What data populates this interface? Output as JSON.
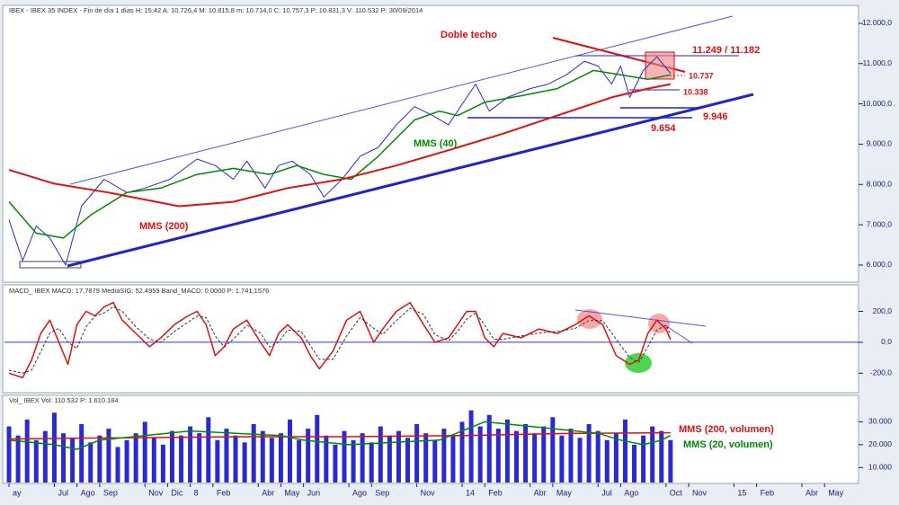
{
  "chart_data": [
    {
      "type": "line",
      "title": "IBEX - IBEX 35 INDEX - Fin de día 1 días H: 15:42 A: 10.726,4 M: 10.815,8 m: 10.714,0 C: 10.757,3 P: 10.831,3 V: 110.532 P: 30/09/2014",
      "xlim": [
        -0.2,
        37.5
      ],
      "ylim": [
        5620,
        12400
      ],
      "yticks": [
        {
          "value": 12000,
          "label": "12.000,0"
        },
        {
          "value": 11000,
          "label": "11.000,0"
        },
        {
          "value": 10000,
          "label": "10.000,0"
        },
        {
          "value": 9000,
          "label": "9.000,0"
        },
        {
          "value": 8000,
          "label": "8.000,0"
        },
        {
          "value": 7000,
          "label": "7.000,0"
        },
        {
          "value": 6000,
          "label": "6.000,0"
        }
      ],
      "series": [
        {
          "color": "#2a2ad4",
          "width": 1,
          "x": [
            0,
            0.6,
            1.2,
            1.8,
            2.5,
            3.2,
            4.2,
            5.2,
            6.0,
            7.1,
            8.3,
            9.1,
            9.9,
            10.5,
            11.3,
            11.9,
            12.5,
            13.3,
            13.9,
            14.7,
            15.5,
            16.3,
            17.1,
            17.9,
            18.7,
            19.4,
            20.2,
            20.6,
            21.2,
            22.0,
            23.0,
            23.8,
            24.6,
            25.4,
            26.0,
            26.6,
            27.0,
            27.4,
            28.0,
            28.6,
            29.2
          ],
          "values": [
            7120,
            6110,
            6970,
            6670,
            6000,
            7460,
            8130,
            7800,
            7910,
            8130,
            8630,
            8470,
            8130,
            8580,
            7910,
            8470,
            8580,
            8250,
            7690,
            8130,
            8700,
            8920,
            9480,
            9930,
            9710,
            9480,
            10160,
            10490,
            9820,
            10160,
            10380,
            10490,
            10720,
            11060,
            10940,
            10490,
            10940,
            10160,
            10830,
            11170,
            10760
          ]
        },
        {
          "name": "MMS (40)",
          "color": "#008a00",
          "width": 1.5,
          "x": [
            0,
            1.2,
            2.4,
            3.6,
            5.2,
            6.7,
            8.3,
            9.9,
            11.5,
            12.7,
            13.9,
            15.1,
            16.3,
            17.9,
            19.0,
            19.8,
            21.0,
            22.6,
            24.2,
            25.8,
            27.0,
            28.2,
            29.2
          ],
          "values": [
            7570,
            6790,
            6670,
            7240,
            7800,
            7910,
            8250,
            8400,
            8250,
            8470,
            8250,
            8130,
            8700,
            9600,
            9820,
            9710,
            10040,
            10200,
            10380,
            10830,
            10720,
            10610,
            10720
          ]
        },
        {
          "name": "MMS (200)",
          "color": "#e01010",
          "width": 2,
          "x": [
            0,
            2.0,
            4.4,
            7.5,
            9.9,
            12.3,
            14.7,
            17.1,
            19.4,
            21.8,
            24.2,
            26.6,
            28.2,
            29.2
          ],
          "values": [
            8360,
            8020,
            7800,
            7460,
            7570,
            7910,
            8130,
            8470,
            8850,
            9260,
            9710,
            10160,
            10380,
            10490
          ]
        }
      ],
      "annotations": [
        "Doble techo",
        "11.249 / 11.182",
        "10.737",
        "10.338",
        "9.946",
        "9.654"
      ]
    },
    {
      "type": "line",
      "title": "MACD_ IBEX MACD: 17,7879 MediaSIG: 52,4959 Band_MACD: 0,0000 P: 1.741,1576",
      "xlim": [
        -0.2,
        37.5
      ],
      "ylim": [
        -320,
        354
      ],
      "yticks": [
        {
          "value": 200,
          "label": "200,0"
        },
        {
          "value": 0,
          "label": "0,0"
        },
        {
          "value": -200,
          "label": "-200,0"
        }
      ],
      "series": [
        {
          "color": "#e01010",
          "width": 1.5,
          "x": [
            0,
            0.6,
            1.0,
            1.4,
            1.8,
            2.2,
            2.6,
            3.0,
            3.4,
            3.8,
            4.2,
            4.6,
            5.0,
            5.6,
            6.2,
            6.7,
            7.3,
            7.9,
            8.3,
            8.7,
            9.1,
            9.5,
            9.9,
            10.5,
            11.1,
            11.5,
            11.9,
            12.3,
            12.9,
            13.3,
            13.7,
            14.3,
            14.9,
            15.5,
            16.1,
            16.5,
            17.1,
            17.7,
            18.3,
            18.8,
            19.4,
            19.8,
            20.2,
            20.6,
            21.0,
            21.4,
            21.8,
            22.6,
            23.4,
            24.2,
            25.0,
            25.6,
            26.2,
            26.8,
            27.4,
            27.8,
            28.2,
            28.6,
            29.0,
            29.2
          ],
          "values": [
            -200,
            -229,
            -114,
            57,
            143,
            0,
            -143,
            114,
            200,
            171,
            229,
            257,
            143,
            57,
            -29,
            29,
            114,
            171,
            200,
            114,
            -86,
            -29,
            86,
            143,
            0,
            -86,
            57,
            114,
            29,
            -86,
            -171,
            -57,
            143,
            200,
            0,
            86,
            200,
            257,
            114,
            0,
            29,
            114,
            200,
            200,
            29,
            -29,
            57,
            29,
            86,
            57,
            114,
            171,
            114,
            -86,
            -143,
            -114,
            57,
            143,
            86,
            18
          ]
        },
        {
          "color": "#333333",
          "width": 1,
          "style": "dashed",
          "x": [
            0,
            0.6,
            1.0,
            1.4,
            1.8,
            2.2,
            2.6,
            3.0,
            3.4,
            3.8,
            4.2,
            4.6,
            5.0,
            5.6,
            6.2,
            6.7,
            7.3,
            7.9,
            8.3,
            8.7,
            9.1,
            9.5,
            9.9,
            10.5,
            11.1,
            11.5,
            11.9,
            12.3,
            12.9,
            13.3,
            13.7,
            14.3,
            14.9,
            15.5,
            16.1,
            16.5,
            17.1,
            17.7,
            18.3,
            18.8,
            19.4,
            19.8,
            20.2,
            20.6,
            21.0,
            21.4,
            21.8,
            22.6,
            23.4,
            24.2,
            25.0,
            25.6,
            26.2,
            26.8,
            27.4,
            27.8,
            28.2,
            28.6,
            29.0,
            29.2
          ],
          "values": [
            -180,
            -200,
            -180,
            -60,
            60,
            90,
            0,
            -40,
            100,
            170,
            190,
            230,
            200,
            100,
            20,
            0,
            70,
            130,
            170,
            160,
            40,
            -30,
            20,
            110,
            60,
            -30,
            0,
            80,
            70,
            -20,
            -110,
            -110,
            40,
            160,
            90,
            50,
            140,
            220,
            180,
            50,
            10,
            70,
            150,
            190,
            110,
            20,
            20,
            40,
            60,
            70,
            90,
            140,
            140,
            20,
            -100,
            -130,
            -30,
            80,
            110,
            52
          ]
        }
      ]
    },
    {
      "type": "bar",
      "title": "Vol_ IBEX Vol: 110.532 P: 1.610.184",
      "xlim": [
        -0.2,
        37.5
      ],
      "ylim": [
        3460,
        40770
      ],
      "yticks": [
        {
          "value": 30000,
          "label": "30.000"
        },
        {
          "value": 20000,
          "label": "20.000"
        },
        {
          "value": 10000,
          "label": "10.000"
        }
      ],
      "xticks": [
        {
          "value": 0,
          "label": "ay"
        },
        {
          "value": 2,
          "label": "Jul"
        },
        {
          "value": 3,
          "label": "Ago"
        },
        {
          "value": 4,
          "label": "Sep"
        },
        {
          "value": 6,
          "label": "Nov"
        },
        {
          "value": 7,
          "label": "Dic"
        },
        8,
        {
          "value": 9,
          "label": "Feb"
        },
        {
          "value": 11,
          "label": "Abr"
        },
        {
          "value": 12,
          "label": "May"
        },
        {
          "value": 13,
          "label": "Jun"
        },
        {
          "value": 15,
          "label": "Ago"
        },
        {
          "value": 16,
          "label": "Sep"
        },
        {
          "value": 18,
          "label": "Nov"
        },
        {
          "value": 20,
          "label": "14"
        },
        {
          "value": 21,
          "label": "Feb"
        },
        {
          "value": 23,
          "label": "Abr"
        },
        {
          "value": 24,
          "label": "May"
        },
        {
          "value": 26,
          "label": "Jul"
        },
        {
          "value": 27,
          "label": "Ago"
        },
        {
          "value": 29,
          "label": "Oct"
        },
        {
          "value": 30,
          "label": "Nov"
        },
        {
          "value": 32,
          "label": "15"
        },
        {
          "value": 33,
          "label": "Feb"
        },
        {
          "value": 35,
          "label": "Abr"
        },
        {
          "value": 36,
          "label": "May"
        }
      ],
      "color": "#2a2ad4",
      "x": [
        0,
        0.4,
        0.8,
        1.2,
        1.6,
        2,
        2.4,
        2.8,
        3.2,
        3.6,
        4,
        4.4,
        4.8,
        5.2,
        5.6,
        6,
        6.4,
        6.8,
        7.2,
        7.6,
        8,
        8.4,
        8.8,
        9.2,
        9.6,
        10,
        10.4,
        10.8,
        11.2,
        11.6,
        12,
        12.4,
        12.8,
        13.2,
        13.6,
        14,
        14.4,
        14.8,
        15.2,
        15.6,
        16,
        16.4,
        16.8,
        17.2,
        17.6,
        18,
        18.4,
        18.8,
        19.2,
        19.6,
        20,
        20.4,
        20.8,
        21.2,
        21.6,
        22,
        22.4,
        22.8,
        23.2,
        23.6,
        24,
        24.4,
        24.8,
        25.2,
        25.6,
        26,
        26.4,
        26.8,
        27.2,
        27.6,
        28,
        28.4,
        28.8,
        29.2
      ],
      "values": [
        28000,
        24000,
        31000,
        22000,
        26000,
        34000,
        25000,
        23000,
        29000,
        21000,
        24000,
        27000,
        19000,
        22000,
        25000,
        30000,
        23000,
        20000,
        26000,
        24000,
        28000,
        25000,
        32000,
        22000,
        27000,
        24000,
        21000,
        29000,
        26000,
        23000,
        25000,
        31000,
        22000,
        27000,
        33000,
        24000,
        20000,
        26000,
        22000,
        25000,
        21000,
        28000,
        24000,
        26000,
        23000,
        29000,
        25000,
        22000,
        27000,
        24000,
        30000,
        35000,
        28000,
        33000,
        27000,
        31000,
        26000,
        29000,
        25000,
        28000,
        32000,
        24000,
        27000,
        23000,
        29000,
        26000,
        22000,
        25000,
        31000,
        20000,
        24000,
        28000,
        26000,
        22000
      ],
      "series": [
        {
          "name": "MMS (200, volumen)",
          "color": "#e01010",
          "width": 1.5,
          "x": [
            0,
            5,
            10,
            15,
            20,
            25,
            29.2
          ],
          "values": [
            22500,
            23000,
            23500,
            23500,
            24000,
            25000,
            25200
          ]
        },
        {
          "name": "MMS (20, volumen)",
          "color": "#008a00",
          "width": 1.5,
          "x": [
            0,
            2,
            3,
            4,
            6,
            8,
            10,
            12,
            13,
            15,
            17,
            19,
            20,
            21,
            23,
            25,
            26,
            27,
            28,
            28.8,
            29.2
          ],
          "values": [
            22000,
            20000,
            18000,
            22000,
            24000,
            26000,
            25000,
            24000,
            22000,
            20000,
            21000,
            22000,
            26000,
            30000,
            28000,
            26000,
            25000,
            22000,
            20000,
            22000,
            24000
          ]
        }
      ]
    }
  ]
}
